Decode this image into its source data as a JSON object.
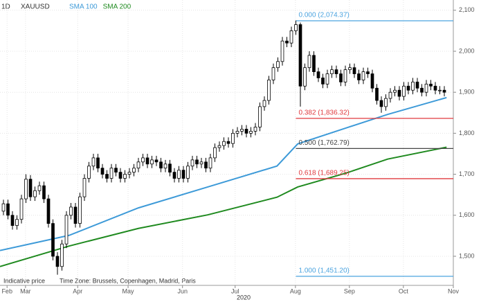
{
  "chart_data": {
    "type": "candlestick",
    "timeframe": "1D",
    "title": "XAUUSD",
    "xlabel": "2020",
    "notes": [
      "Indicative price",
      "Time Zone: Brussels, Copenhagen, Madrid, Paris"
    ],
    "up_color": "#ffffff",
    "down_color": "#000000",
    "grid": true,
    "open": [
      1610,
      1628,
      1600,
      1575,
      1590,
      1640,
      1688,
      1645,
      1660,
      1672,
      1640,
      1580,
      1500,
      1475,
      1530,
      1600,
      1620,
      1580,
      1645,
      1690,
      1720,
      1740,
      1715,
      1700,
      1690,
      1715,
      1705,
      1690,
      1700,
      1705,
      1715,
      1730,
      1740,
      1725,
      1735,
      1730,
      1715,
      1725,
      1705,
      1690,
      1710,
      1690,
      1720,
      1735,
      1725,
      1730,
      1715,
      1740,
      1765,
      1770,
      1780,
      1775,
      1800,
      1805,
      1810,
      1800,
      1805,
      1815,
      1865,
      1880,
      1930,
      1960,
      1975,
      2025,
      2020,
      2050,
      2065,
      1915,
      1960,
      1990,
      1950,
      1935,
      1920,
      1945,
      1955,
      1945,
      1925,
      1955,
      1960,
      1945,
      1930,
      1950,
      1945,
      1910,
      1880,
      1865,
      1885,
      1900,
      1905,
      1890,
      1915,
      1905,
      1925,
      1910,
      1900,
      1920,
      1915,
      1905,
      1905
    ],
    "high": [
      1638,
      1638,
      1610,
      1600,
      1650,
      1700,
      1698,
      1670,
      1682,
      1682,
      1650,
      1590,
      1510,
      1540,
      1610,
      1630,
      1630,
      1655,
      1700,
      1730,
      1750,
      1750,
      1725,
      1710,
      1725,
      1725,
      1715,
      1710,
      1715,
      1725,
      1740,
      1750,
      1750,
      1745,
      1745,
      1740,
      1735,
      1735,
      1715,
      1720,
      1720,
      1730,
      1745,
      1745,
      1740,
      1740,
      1750,
      1775,
      1780,
      1790,
      1790,
      1810,
      1815,
      1820,
      1820,
      1815,
      1825,
      1875,
      1890,
      1940,
      1970,
      1985,
      2035,
      2035,
      2060,
      2075,
      2070,
      1970,
      2000,
      2000,
      1960,
      1945,
      1955,
      1965,
      1965,
      1955,
      1965,
      1970,
      1970,
      1955,
      1960,
      1960,
      1955,
      1920,
      1890,
      1895,
      1910,
      1915,
      1915,
      1925,
      1925,
      1935,
      1935,
      1920,
      1930,
      1930,
      1925,
      1915,
      1915
    ],
    "low": [
      1600,
      1590,
      1565,
      1565,
      1580,
      1630,
      1635,
      1635,
      1650,
      1630,
      1570,
      1490,
      1455,
      1465,
      1520,
      1590,
      1570,
      1570,
      1635,
      1680,
      1710,
      1705,
      1690,
      1680,
      1680,
      1695,
      1680,
      1680,
      1690,
      1695,
      1705,
      1720,
      1715,
      1715,
      1720,
      1705,
      1705,
      1695,
      1680,
      1680,
      1680,
      1680,
      1710,
      1715,
      1715,
      1705,
      1705,
      1730,
      1755,
      1760,
      1765,
      1765,
      1790,
      1795,
      1790,
      1790,
      1795,
      1805,
      1855,
      1870,
      1920,
      1950,
      1965,
      2010,
      2010,
      2040,
      1865,
      1905,
      1950,
      1940,
      1925,
      1910,
      1910,
      1935,
      1935,
      1915,
      1915,
      1945,
      1935,
      1920,
      1920,
      1935,
      1900,
      1870,
      1850,
      1855,
      1875,
      1890,
      1880,
      1880,
      1895,
      1895,
      1900,
      1890,
      1890,
      1905,
      1895,
      1895,
      1890
    ],
    "close": [
      1628,
      1600,
      1575,
      1590,
      1640,
      1688,
      1645,
      1660,
      1672,
      1640,
      1580,
      1500,
      1475,
      1530,
      1600,
      1620,
      1580,
      1645,
      1690,
      1720,
      1740,
      1715,
      1700,
      1690,
      1715,
      1705,
      1690,
      1700,
      1705,
      1715,
      1730,
      1740,
      1725,
      1735,
      1730,
      1715,
      1725,
      1705,
      1690,
      1710,
      1690,
      1720,
      1735,
      1725,
      1730,
      1715,
      1740,
      1765,
      1770,
      1780,
      1775,
      1800,
      1805,
      1810,
      1800,
      1805,
      1815,
      1865,
      1880,
      1930,
      1960,
      1975,
      2025,
      2020,
      2050,
      2065,
      1915,
      1960,
      1990,
      1950,
      1935,
      1920,
      1945,
      1955,
      1945,
      1925,
      1955,
      1960,
      1945,
      1930,
      1950,
      1945,
      1910,
      1880,
      1865,
      1885,
      1900,
      1905,
      1890,
      1915,
      1905,
      1925,
      1910,
      1900,
      1920,
      1915,
      1905,
      1905,
      1900
    ],
    "overlays": [
      {
        "name": "SMA 100",
        "color": "#3d9ad8",
        "x": [
          -0.77,
          14.6,
          30,
          45.4,
          60.8,
          65.4,
          76.2,
          85.4,
          98.5
        ],
        "values": [
          1514,
          1551,
          1618,
          1669,
          1720,
          1774,
          1813,
          1846,
          1887
        ]
      },
      {
        "name": "SMA 200",
        "color": "#1f8a1f",
        "x": [
          -0.77,
          14.6,
          30,
          45.4,
          60.8,
          65.4,
          76.2,
          85.4,
          98.5
        ],
        "values": [
          1475,
          1525,
          1568,
          1601,
          1644,
          1669,
          1703,
          1737,
          1766
        ]
      }
    ],
    "levels": [
      {
        "label": "0.000 (2,074.37)",
        "value": 2074.37,
        "color": "#4aa3df"
      },
      {
        "label": "0.382 (1,836.32)",
        "value": 1836.32,
        "color": "#e0393e"
      },
      {
        "label": "0.500 (1,762.79)",
        "value": 1762.79,
        "color": "#444444"
      },
      {
        "label": "0.618 (1,689.25)",
        "value": 1689.25,
        "color": "#e0393e"
      },
      {
        "label": "1.000 (1,451.20)",
        "value": 1451.2,
        "color": "#4aa3df"
      }
    ],
    "xlim": [
      -0.77,
      100
    ],
    "ylim": [
      1429,
      2125
    ],
    "xticks": [
      {
        "value": 0.8,
        "label": "Feb"
      },
      {
        "value": 4.9,
        "label": "Mar"
      },
      {
        "value": 16.5,
        "label": "Apr"
      },
      {
        "value": 27.7,
        "label": "May"
      },
      {
        "value": 39.8,
        "label": "Jun"
      },
      {
        "value": 51.5,
        "label": "Jul"
      },
      {
        "value": 64.9,
        "label": "Aug"
      },
      {
        "value": 76.9,
        "label": "Sep"
      },
      {
        "value": 88.9,
        "label": "Oct"
      },
      {
        "value": 100,
        "label": "Nov"
      }
    ],
    "yticks": [
      {
        "value": 1500,
        "label": "1,500"
      },
      {
        "value": 1600,
        "label": "1,600"
      },
      {
        "value": 1700,
        "label": "1,700"
      },
      {
        "value": 1800,
        "label": "1,800"
      },
      {
        "value": 1900,
        "label": "1,900"
      },
      {
        "value": 2000,
        "label": "2,000"
      },
      {
        "value": 2100,
        "label": "2,100"
      }
    ]
  }
}
